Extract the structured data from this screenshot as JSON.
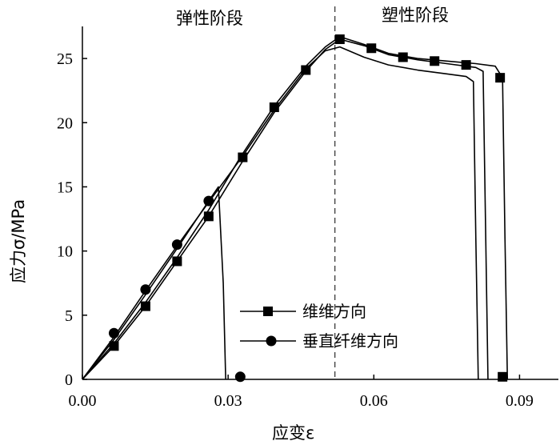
{
  "chart_data": {
    "type": "line",
    "xlabel": "应变ε",
    "ylabel": "应力σ/MPa",
    "xlim": [
      0,
      0.098
    ],
    "ylim": [
      0,
      27.5
    ],
    "xticks": [
      "0.00",
      "0.03",
      "0.06",
      "0.09"
    ],
    "yticks": [
      "0",
      "5",
      "10",
      "15",
      "20",
      "25"
    ],
    "annotations": {
      "elastic_stage": "弹性阶段",
      "plastic_stage": "塑性阶段",
      "divider_x": 0.052
    },
    "legend": {
      "position": "bottom-center"
    },
    "series": [
      {
        "name": "维维方向",
        "marker": "square",
        "lines": [
          {
            "x": [
              0,
              0.0065,
              0.013,
              0.0195,
              0.026,
              0.033,
              0.0395,
              0.046,
              0.05,
              0.053,
              0.058,
              0.063,
              0.069,
              0.075,
              0.081,
              0.0825,
              0.083,
              0.0835
            ],
            "y": [
              0,
              2.6,
              5.7,
              9.2,
              12.7,
              17.0,
              20.8,
              24.0,
              25.7,
              26.5,
              26.0,
              25.3,
              24.9,
              24.6,
              24.3,
              24.0,
              12,
              0
            ]
          },
          {
            "x": [
              0,
              0.0065,
              0.013,
              0.0195,
              0.026,
              0.0325,
              0.0395,
              0.046,
              0.05,
              0.053,
              0.058,
              0.063,
              0.069,
              0.075,
              0.081,
              0.085,
              0.0865,
              0.087,
              0.0875
            ],
            "y": [
              0,
              2.8,
              6.0,
              9.5,
              13.2,
              17.3,
              21.3,
              24.4,
              25.9,
              26.7,
              26.1,
              25.4,
              25.0,
              24.8,
              24.6,
              24.4,
              23.5,
              11,
              0
            ]
          }
        ],
        "marker_x": [
          0.0065,
          0.013,
          0.0195,
          0.026,
          0.033,
          0.0395,
          0.046,
          0.053,
          0.0595,
          0.066,
          0.0725,
          0.079,
          0.086,
          0.0865
        ],
        "marker_y": [
          2.6,
          5.7,
          9.2,
          12.7,
          17.3,
          21.2,
          24.1,
          26.5,
          25.8,
          25.1,
          24.8,
          24.5,
          23.5,
          0.2
        ]
      },
      {
        "name": "垂直纤维方向",
        "marker": "circle",
        "lines": [
          {
            "x": [
              0,
              0.0065,
              0.013,
              0.0195,
              0.026,
              0.033,
              0.0395,
              0.046,
              0.05,
              0.053,
              0.058,
              0.063,
              0.069,
              0.075,
              0.079,
              0.0805,
              0.081,
              0.0815
            ],
            "y": [
              0,
              3.3,
              6.9,
              10.4,
              13.8,
              17.4,
              21.0,
              24.2,
              25.6,
              25.9,
              25.1,
              24.5,
              24.1,
              23.8,
              23.6,
              23.2,
              11,
              0
            ]
          },
          {
            "x": [
              0,
              0.0065,
              0.013,
              0.0195,
              0.026,
              0.028,
              0.029,
              0.0295
            ],
            "y": [
              0,
              3.1,
              6.6,
              10.2,
              13.9,
              15.0,
              7.5,
              0
            ]
          }
        ],
        "marker_x": [
          0.0065,
          0.013,
          0.0195,
          0.026,
          0.0325
        ],
        "marker_y": [
          3.6,
          7.0,
          10.5,
          13.9,
          0.2
        ]
      }
    ]
  }
}
